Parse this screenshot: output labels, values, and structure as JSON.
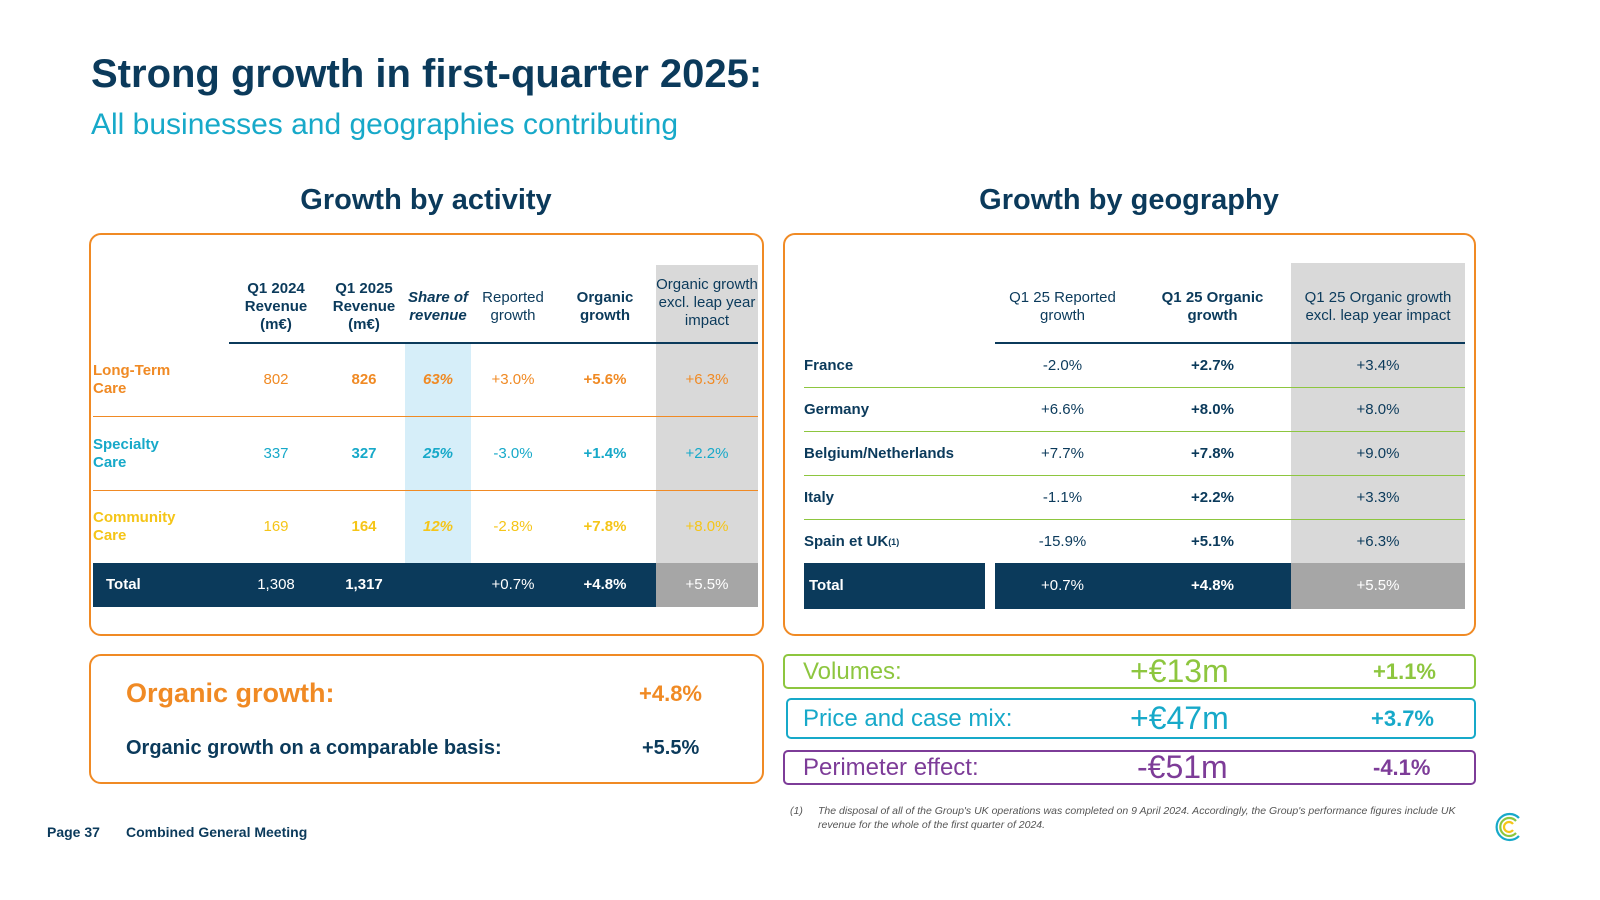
{
  "header": {
    "title": "Strong growth in first-quarter 2025:",
    "subtitle": "All businesses and geographies contributing"
  },
  "activity": {
    "heading": "Growth by activity",
    "columns": [
      "Q1 2024 Revenue (m€)",
      "Q1 2025 Revenue (m€)",
      "Share of revenue",
      "Reported growth",
      "Organic growth",
      "Organic growth excl. leap year impact"
    ],
    "rows": [
      {
        "label": "Long-Term Care",
        "q1_2024": "802",
        "q1_2025": "826",
        "share": "63%",
        "reported": "+3.0%",
        "organic": "+5.6%",
        "organic_excl": "+6.3%"
      },
      {
        "label": "Specialty Care",
        "q1_2024": "337",
        "q1_2025": "327",
        "share": "25%",
        "reported": "-3.0%",
        "organic": "+1.4%",
        "organic_excl": "+2.2%"
      },
      {
        "label": "Community Care",
        "q1_2024": "169",
        "q1_2025": "164",
        "share": "12%",
        "reported": "-2.8%",
        "organic": "+7.8%",
        "organic_excl": "+8.0%"
      }
    ],
    "total": {
      "label": "Total",
      "q1_2024": "1,308",
      "q1_2025": "1,317",
      "reported": "+0.7%",
      "organic": "+4.8%",
      "organic_excl": "+5.5%"
    }
  },
  "geography": {
    "heading": "Growth by geography",
    "columns": [
      "Q1 25 Reported growth",
      "Q1 25 Organic growth",
      "Q1 25 Organic growth excl. leap year impact"
    ],
    "rows": [
      {
        "label": "France",
        "reported": "-2.0%",
        "organic": "+2.7%",
        "organic_excl": "+3.4%"
      },
      {
        "label": "Germany",
        "reported": "+6.6%",
        "organic": "+8.0%",
        "organic_excl": "+8.0%"
      },
      {
        "label": "Belgium/Netherlands",
        "reported": "+7.7%",
        "organic": "+7.8%",
        "organic_excl": "+9.0%"
      },
      {
        "label": "Italy",
        "reported": "-1.1%",
        "organic": "+2.2%",
        "organic_excl": "+3.3%"
      },
      {
        "label": "Spain et UK",
        "footnote_mark": "(1)",
        "reported": "-15.9%",
        "organic": "+5.1%",
        "organic_excl": "+6.3%"
      }
    ],
    "total": {
      "label": "Total",
      "reported": "+0.7%",
      "organic": "+4.8%",
      "organic_excl": "+5.5%"
    }
  },
  "organic_summary": {
    "label": "Organic growth:",
    "value": "+4.8%",
    "comparable_label": "Organic growth on a comparable basis:",
    "comparable_value": "+5.5%"
  },
  "bridge": [
    {
      "label": "Volumes:",
      "amount": "+€13m",
      "pct": "+1.1%",
      "color": "#8dc63f"
    },
    {
      "label": "Price and case mix:",
      "amount": "+€47m",
      "pct": "+3.7%",
      "color": "#17a9c9"
    },
    {
      "label": "Perimeter effect:",
      "amount": "-€51m",
      "pct": "-4.1%",
      "color": "#7d3c98"
    }
  ],
  "footnote": {
    "mark": "(1)",
    "text": "The disposal of all of the Group's UK operations was completed on 9 April 2024. Accordingly, the Group's performance figures include UK revenue for the whole of the first quarter of 2024."
  },
  "footer": {
    "page": "Page 37",
    "event": "Combined General Meeting"
  },
  "colors": {
    "navy": "#0b3a5b",
    "orange": "#f08a24",
    "teal": "#17a9c9",
    "yellow": "#f5c518",
    "green": "#8dc63f",
    "purple": "#7d3c98",
    "grey": "#d9d9d9"
  }
}
